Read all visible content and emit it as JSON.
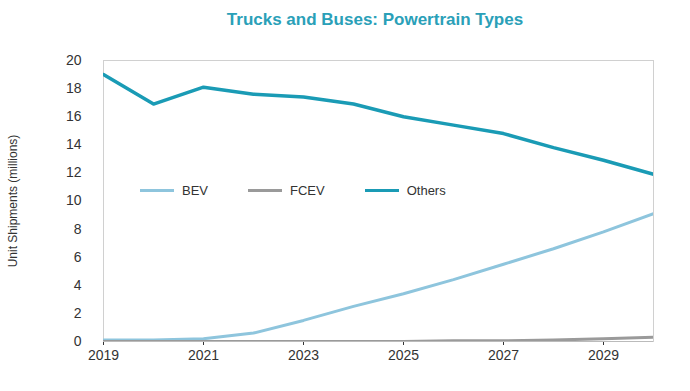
{
  "chart_data": {
    "type": "line",
    "title": "Trucks and Buses: Powertrain Types",
    "y_label": "Unit Shipments (millions)",
    "x": [
      2019,
      2020,
      2021,
      2022,
      2023,
      2024,
      2025,
      2026,
      2027,
      2028,
      2029,
      2030
    ],
    "series": [
      {
        "name": "BEV",
        "color": "#8ec5dd",
        "values": [
          0.1,
          0.1,
          0.2,
          0.6,
          1.5,
          2.5,
          3.4,
          4.4,
          5.5,
          6.6,
          7.8,
          9.1
        ]
      },
      {
        "name": "FCEV",
        "color": "#9a9a9a",
        "values": [
          0,
          0,
          0,
          0,
          0,
          0,
          0,
          0.05,
          0.05,
          0.1,
          0.2,
          0.3
        ]
      },
      {
        "name": "Others",
        "color": "#1a9bb5",
        "values": [
          19.0,
          16.9,
          18.1,
          17.6,
          17.4,
          16.9,
          16.0,
          15.4,
          14.8,
          13.8,
          12.9,
          11.9
        ]
      }
    ],
    "xlim": [
      2019,
      2030
    ],
    "xticks": [
      2019,
      2021,
      2023,
      2025,
      2027,
      2029
    ],
    "ylim": [
      0,
      20
    ],
    "yticks": [
      0,
      2,
      4,
      6,
      8,
      10,
      12,
      14,
      16,
      18,
      20
    ],
    "grid": false,
    "legend": "left"
  }
}
